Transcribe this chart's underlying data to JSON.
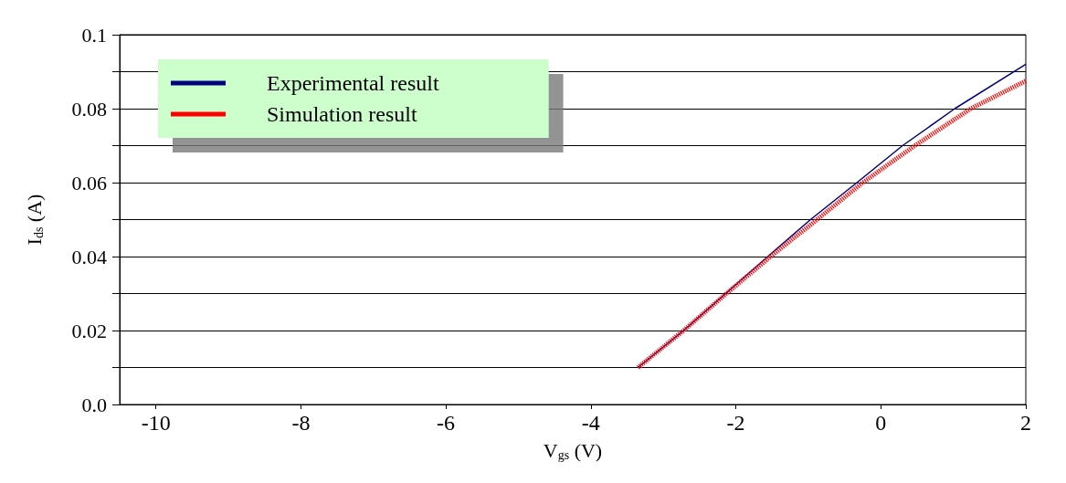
{
  "chart_data": {
    "type": "line",
    "xlabel": "V$_{gs}$ (V)",
    "ylabel": "I$_{ds}$ (A)",
    "xlim": [
      -10.5,
      2
    ],
    "xticks": [
      -10,
      -8,
      -6,
      -4,
      -2,
      0,
      2
    ],
    "ylim": [
      0,
      0.1
    ],
    "yticks": [
      {
        "value": 0,
        "label": "0.0"
      },
      {
        "value": 0.01,
        "label": null
      },
      0.02,
      {
        "value": 0.03,
        "label": null
      },
      0.04,
      {
        "value": 0.05,
        "label": null
      },
      0.06,
      {
        "value": 0.07,
        "label": null
      },
      0.08,
      {
        "value": 0.09,
        "label": null
      },
      0.1
    ],
    "grid": "y",
    "legend": "top left",
    "marker": "none",
    "series": [
      {
        "name": "Experimental result",
        "color": "#000080",
        "line_style": "solid",
        "x": [
          -3.35,
          -2.72,
          -2.14,
          -1.56,
          -0.97,
          -0.33,
          0.3,
          1.02,
          2
        ],
        "values": [
          0.01,
          0.02,
          0.03,
          0.04,
          0.05,
          0.06,
          0.07,
          0.08,
          0.092
        ]
      },
      {
        "name": "Simulation result",
        "color": "#ff0000",
        "line_style": "dotted",
        "x": [
          -3.35,
          -2.72,
          -2.13,
          -1.52,
          -0.88,
          -0.25,
          0.47,
          1.24,
          2
        ],
        "values": [
          0.01,
          0.02,
          0.03,
          0.04,
          0.05,
          0.06,
          0.07,
          0.08,
          0.0875
        ]
      }
    ]
  }
}
